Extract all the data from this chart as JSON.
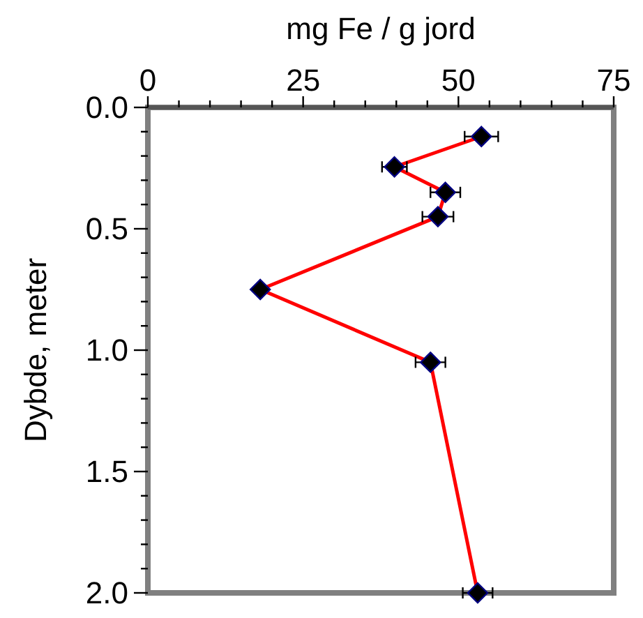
{
  "chart_data": {
    "type": "line",
    "xlabel": "mg Fe / g jord",
    "ylabel": "Dybde, meter",
    "series": [
      {
        "color": "#ff0000",
        "x": [
          53.7,
          39.7,
          47.9,
          46.7,
          18.1,
          45.5,
          53.1
        ],
        "values": [
          0.12,
          0.245,
          0.35,
          0.45,
          0.75,
          1.05,
          2.0
        ],
        "xerrors": [
          2.7,
          2,
          2.4,
          2.5,
          null,
          2.4,
          2.4
        ]
      }
    ],
    "marker": "diamond",
    "line_style": "solid",
    "xlim": [
      0,
      75
    ],
    "xticks": [
      0,
      {
        "value": 5,
        "label": null
      },
      {
        "value": 10,
        "label": null
      },
      {
        "value": 15,
        "label": null
      },
      {
        "value": 20,
        "label": null
      },
      25,
      {
        "value": 30,
        "label": null
      },
      {
        "value": 35,
        "label": null
      },
      {
        "value": 40,
        "label": null
      },
      {
        "value": 45,
        "label": null
      },
      50,
      {
        "value": 55,
        "label": null
      },
      {
        "value": 60,
        "label": null
      },
      {
        "value": 65,
        "label": null
      },
      {
        "value": 70,
        "label": null
      },
      75
    ],
    "ylim": [
      2,
      0
    ],
    "yticks": [
      {
        "value": 0,
        "label": "0.0"
      },
      {
        "value": 0.1,
        "label": null
      },
      {
        "value": 0.2,
        "label": null
      },
      {
        "value": 0.3,
        "label": null
      },
      {
        "value": 0.4,
        "label": null
      },
      {
        "value": 0.5,
        "label": "0.5"
      },
      {
        "value": 0.6,
        "label": null
      },
      {
        "value": 0.7,
        "label": null
      },
      {
        "value": 0.8,
        "label": null
      },
      {
        "value": 0.9,
        "label": null
      },
      {
        "value": 1,
        "label": "1.0"
      },
      {
        "value": 1.1,
        "label": null
      },
      {
        "value": 1.2,
        "label": null
      },
      {
        "value": 1.3,
        "label": null
      },
      {
        "value": 1.4,
        "label": null
      },
      {
        "value": 1.5,
        "label": "1.5"
      },
      {
        "value": 1.6,
        "label": null
      },
      {
        "value": 1.7,
        "label": null
      },
      {
        "value": 1.8,
        "label": null
      },
      {
        "value": 1.9,
        "label": null
      },
      {
        "value": 2,
        "label": "2.0"
      }
    ]
  }
}
